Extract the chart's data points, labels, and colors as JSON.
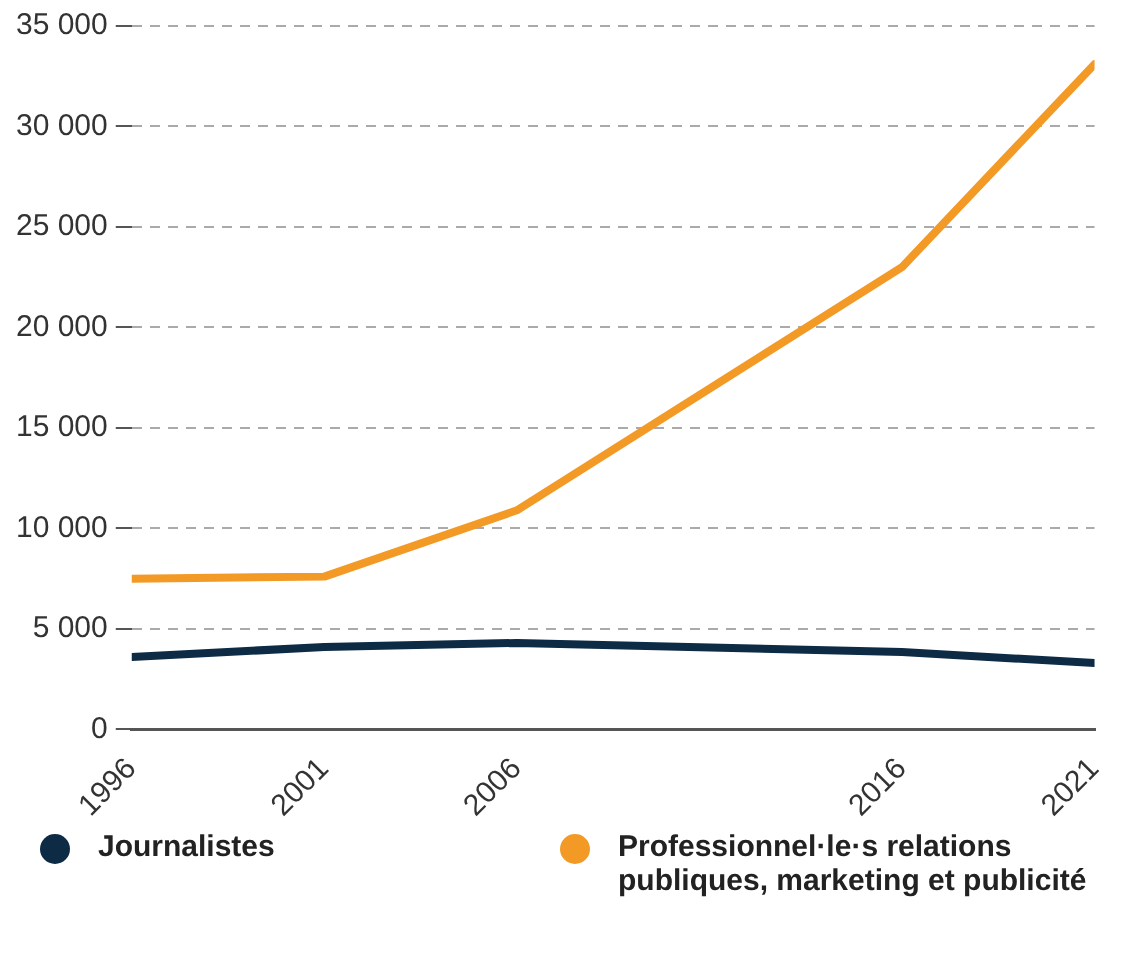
{
  "chart_data": {
    "type": "line",
    "x": [
      1996,
      2001,
      2006,
      2016,
      2021
    ],
    "series": [
      {
        "name": "Journalistes",
        "color": "#0d2b45",
        "values": [
          3600,
          4100,
          4300,
          3850,
          3300
        ]
      },
      {
        "name": "Professionnel·le·s relations publiques, marketing et publicité",
        "color": "#f39a26",
        "values": [
          7500,
          7600,
          10900,
          23000,
          33100
        ]
      }
    ],
    "xlim": [
      1996,
      2021
    ],
    "xticks": [
      1996,
      2001,
      2006,
      2016,
      2021
    ],
    "ylim": [
      0,
      35000
    ],
    "yticks": [
      {
        "value": 0,
        "label": "0"
      },
      {
        "value": 5000,
        "label": "5 000"
      },
      {
        "value": 10000,
        "label": "10 000"
      },
      {
        "value": 15000,
        "label": "15 000"
      },
      {
        "value": 20000,
        "label": "20 000"
      },
      {
        "value": 25000,
        "label": "25 000"
      },
      {
        "value": 30000,
        "label": "30 000"
      },
      {
        "value": 35000,
        "label": "35 000"
      }
    ],
    "grid": "y",
    "legend": "bottom",
    "marker": "none",
    "line_style": "solid"
  }
}
